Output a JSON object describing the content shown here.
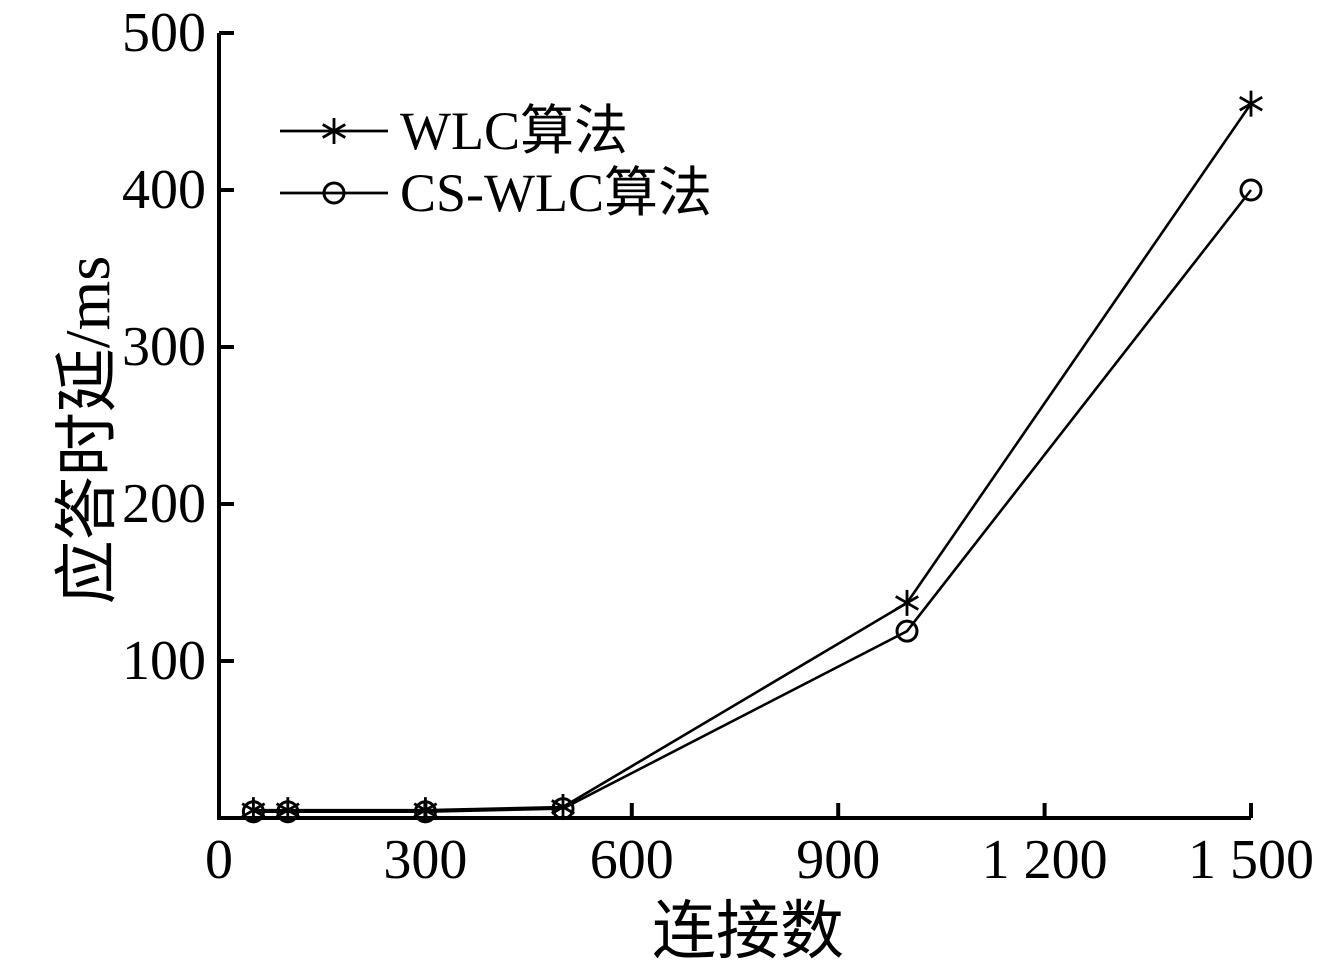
{
  "figure": {
    "background": "#ffffff",
    "ink": "#000000"
  },
  "chart_data": {
    "type": "line",
    "title": "",
    "xlabel": "连接数",
    "ylabel": "应答时延/ms",
    "xlim": [
      0,
      1500
    ],
    "ylim": [
      0,
      500
    ],
    "grid": false,
    "legend": {
      "position": "upper-left",
      "frame": false
    },
    "x_ticks": {
      "values": [
        0,
        300,
        600,
        900,
        1200,
        1500
      ],
      "labels": [
        "0",
        "300",
        "600",
        "900",
        "1 200",
        "1 500"
      ]
    },
    "y_ticks": {
      "values": [
        100,
        200,
        300,
        400,
        500
      ],
      "labels": [
        "100",
        "200",
        "300",
        "400",
        "500"
      ]
    },
    "series": [
      {
        "name": "WLC算法",
        "marker": "asterisk",
        "linestyle": "solid",
        "color": "#000000",
        "x": [
          50,
          100,
          300,
          500,
          1000,
          1500
        ],
        "y": [
          5,
          5,
          5,
          7,
          137,
          455
        ]
      },
      {
        "name": "CS-WLC算法",
        "marker": "circle",
        "linestyle": "solid",
        "color": "#000000",
        "x": [
          50,
          100,
          300,
          500,
          1000,
          1500
        ],
        "y": [
          4,
          4,
          4,
          6,
          119,
          400
        ]
      }
    ]
  }
}
